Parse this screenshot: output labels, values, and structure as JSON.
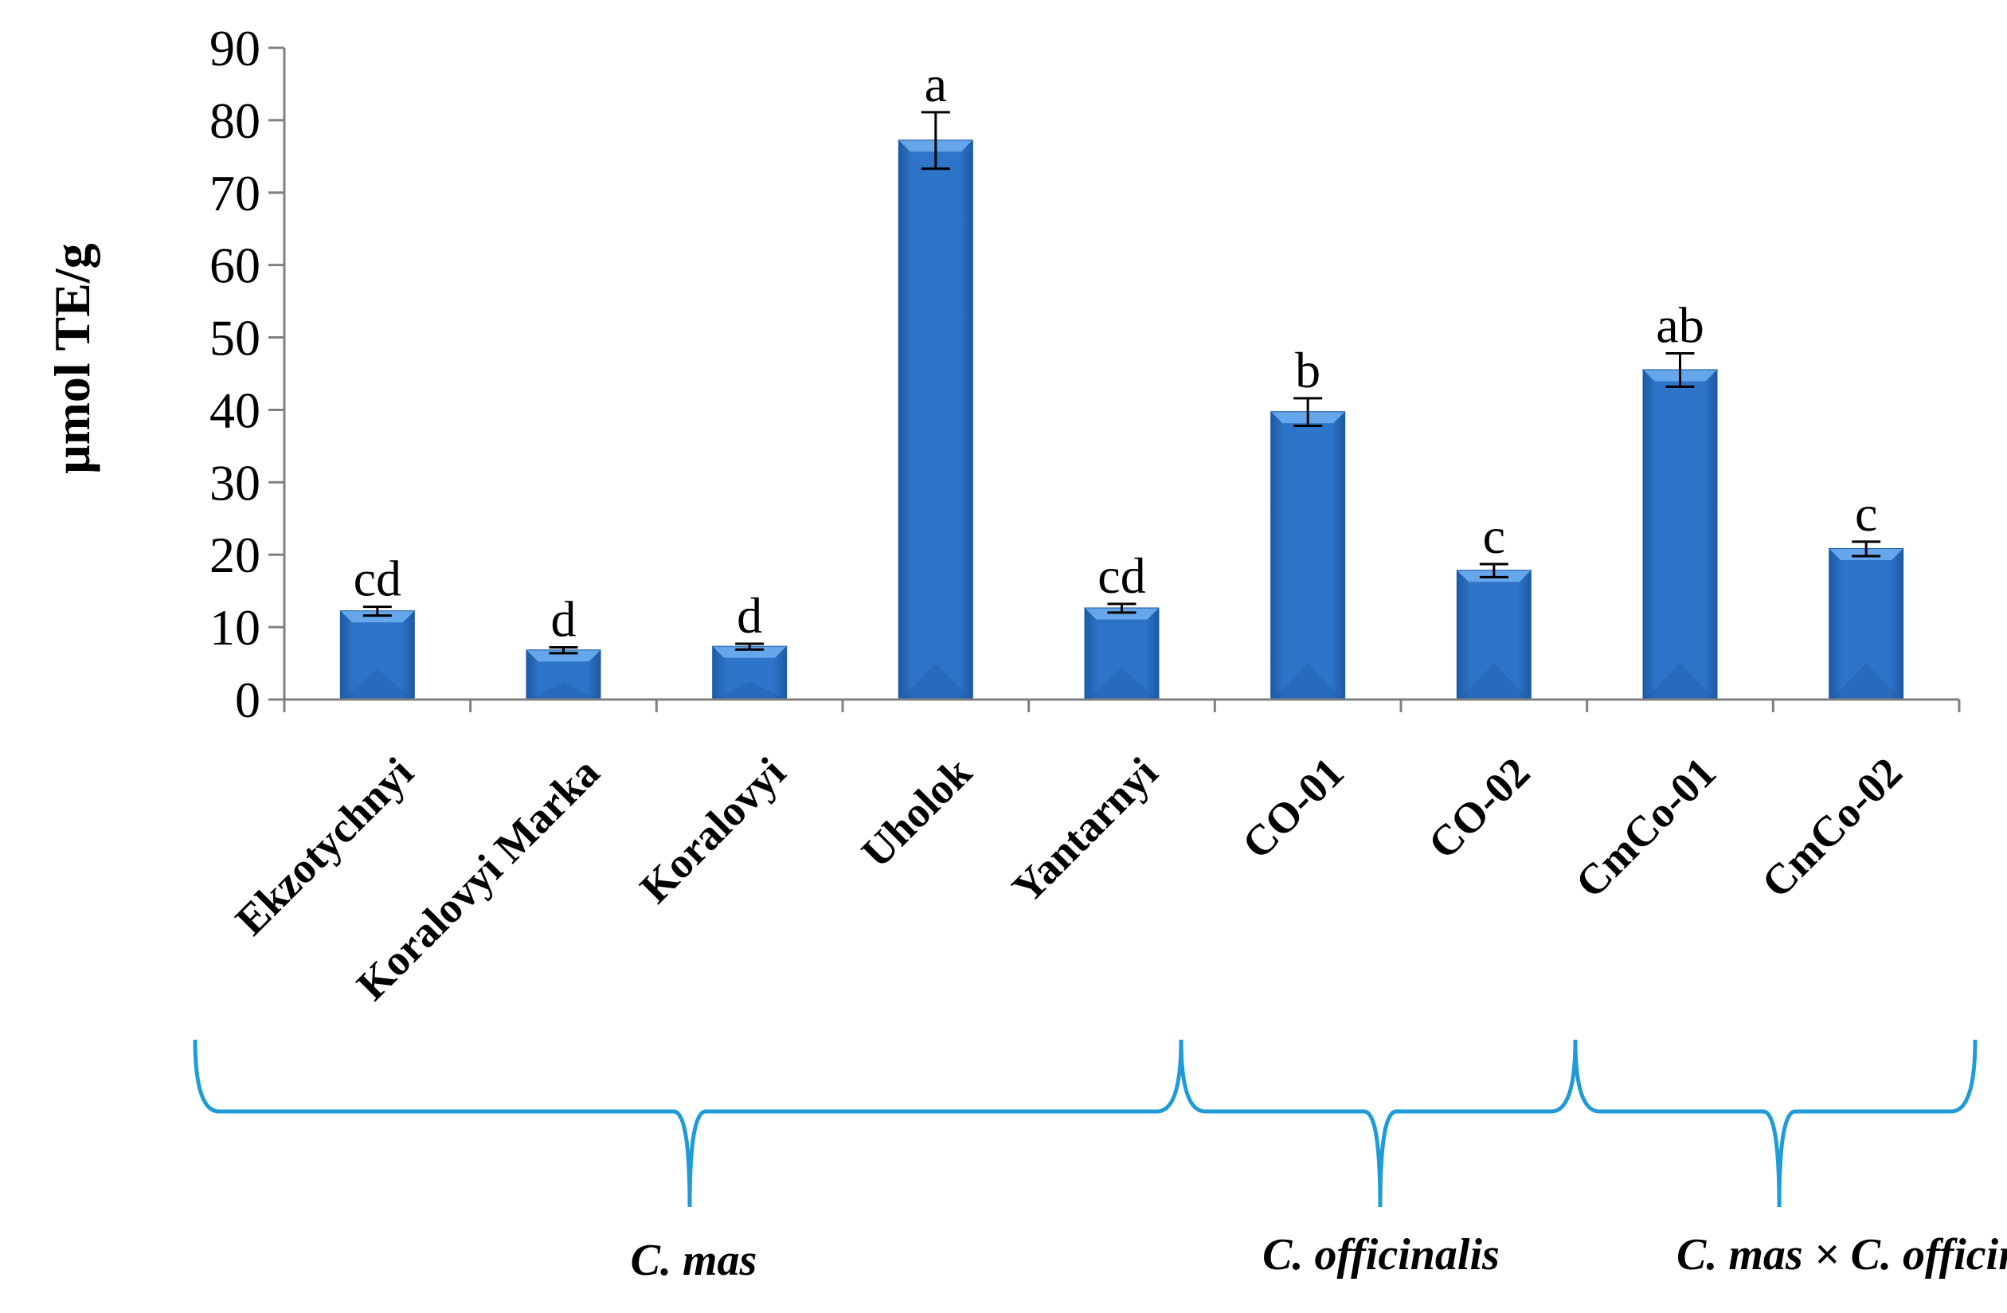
{
  "chart_data": {
    "type": "bar",
    "ylabel": "μmol TE/g",
    "xlabel": "",
    "ylim": [
      0,
      90
    ],
    "yticks": [
      "0",
      "10",
      "20",
      "30",
      "40",
      "50",
      "60",
      "70",
      "80",
      "90"
    ],
    "categories": [
      "Ekzotychnyi",
      "Koralovyi Marka",
      "Koralovyi",
      "Uholok",
      "Yantarnyi",
      "CO-01",
      "CO-02",
      "CmCo-01",
      "CmCo-02"
    ],
    "values": [
      12.2,
      6.8,
      7.3,
      77.2,
      12.6,
      39.7,
      17.8,
      45.5,
      20.8
    ],
    "errors": [
      0.6,
      0.4,
      0.4,
      3.9,
      0.6,
      1.9,
      0.9,
      2.3,
      1.0
    ],
    "significance": [
      "cd",
      "d",
      "d",
      "a",
      "cd",
      "b",
      "c",
      "ab",
      "c"
    ],
    "groups": [
      {
        "label": "C. mas",
        "from": 0,
        "to": 4
      },
      {
        "label": "C. officinalis",
        "from": 5,
        "to": 6
      },
      {
        "label": "C. mas × C. officinalis",
        "from": 7,
        "to": 8
      }
    ],
    "colors": {
      "bar": "#2e75c9",
      "bar_light": "#6fb0f0",
      "bar_dark": "#1d5aa6",
      "bracket": "#1f9bd7",
      "axis": "#808080"
    }
  }
}
